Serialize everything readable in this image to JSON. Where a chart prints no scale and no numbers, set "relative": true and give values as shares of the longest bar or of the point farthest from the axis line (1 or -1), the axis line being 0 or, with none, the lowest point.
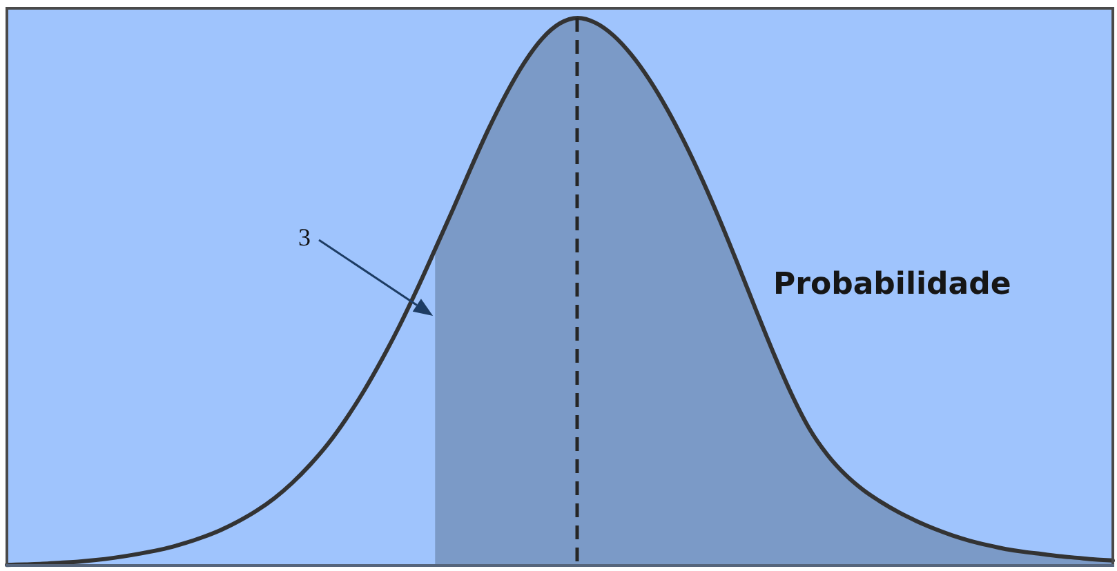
{
  "chart_data": {
    "type": "line",
    "relative": true,
    "tick_labels": false,
    "marker": "none",
    "categories": [
      null,
      null,
      null,
      null,
      null,
      null,
      null,
      null,
      null,
      null,
      null,
      null,
      null,
      null,
      null,
      null,
      null,
      null,
      null,
      null,
      null,
      null,
      null,
      null,
      null,
      null,
      null,
      null,
      null,
      null,
      null,
      null,
      null,
      null,
      null,
      null,
      null,
      null,
      null,
      null,
      null,
      null,
      null,
      null,
      null,
      null,
      null,
      null,
      null,
      null,
      null,
      null,
      null,
      null,
      null,
      null,
      null,
      null,
      null,
      null,
      null,
      null,
      null
    ],
    "series": [
      {
        "color": "#333333",
        "values": [
          0.001,
          0.002,
          0.003,
          0.005,
          0.007,
          0.01,
          0.014,
          0.019,
          0.025,
          0.032,
          0.041,
          0.052,
          0.065,
          0.081,
          0.1,
          0.123,
          0.151,
          0.184,
          0.222,
          0.267,
          0.318,
          0.375,
          0.437,
          0.505,
          0.577,
          0.65,
          0.725,
          0.797,
          0.862,
          0.918,
          0.962,
          0.99,
          1,
          0.991,
          0.968,
          0.933,
          0.888,
          0.834,
          0.772,
          0.703,
          0.628,
          0.548,
          0.466,
          0.386,
          0.312,
          0.249,
          0.202,
          0.166,
          0.138,
          0.116,
          0.097,
          0.081,
          0.067,
          0.055,
          0.045,
          0.037,
          0.03,
          0.025,
          0.021,
          0.017,
          0.014,
          0.011,
          0.009
        ]
      },
      {
        "type": "area",
        "color": "#7b9ac7",
        "values": [
          null,
          null,
          null,
          null,
          null,
          null,
          null,
          null,
          null,
          null,
          null,
          null,
          null,
          null,
          null,
          null,
          null,
          null,
          null,
          null,
          null,
          null,
          null,
          null,
          0.577,
          0.65,
          0.725,
          0.797,
          0.862,
          0.918,
          0.962,
          0.99,
          1,
          0.991,
          0.968,
          0.933,
          0.888,
          0.834,
          0.772,
          0.703,
          0.628,
          0.548,
          0.466,
          0.386,
          0.312,
          0.249,
          0.202,
          0.166,
          0.138,
          0.116,
          0.097,
          0.081,
          0.067,
          0.055,
          0.045,
          0.037,
          0.03,
          0.025,
          0.021,
          0.017,
          0.014,
          0.011,
          0.009
        ]
      }
    ],
    "annotations": [
      "3",
      "Probabilidade"
    ]
  }
}
